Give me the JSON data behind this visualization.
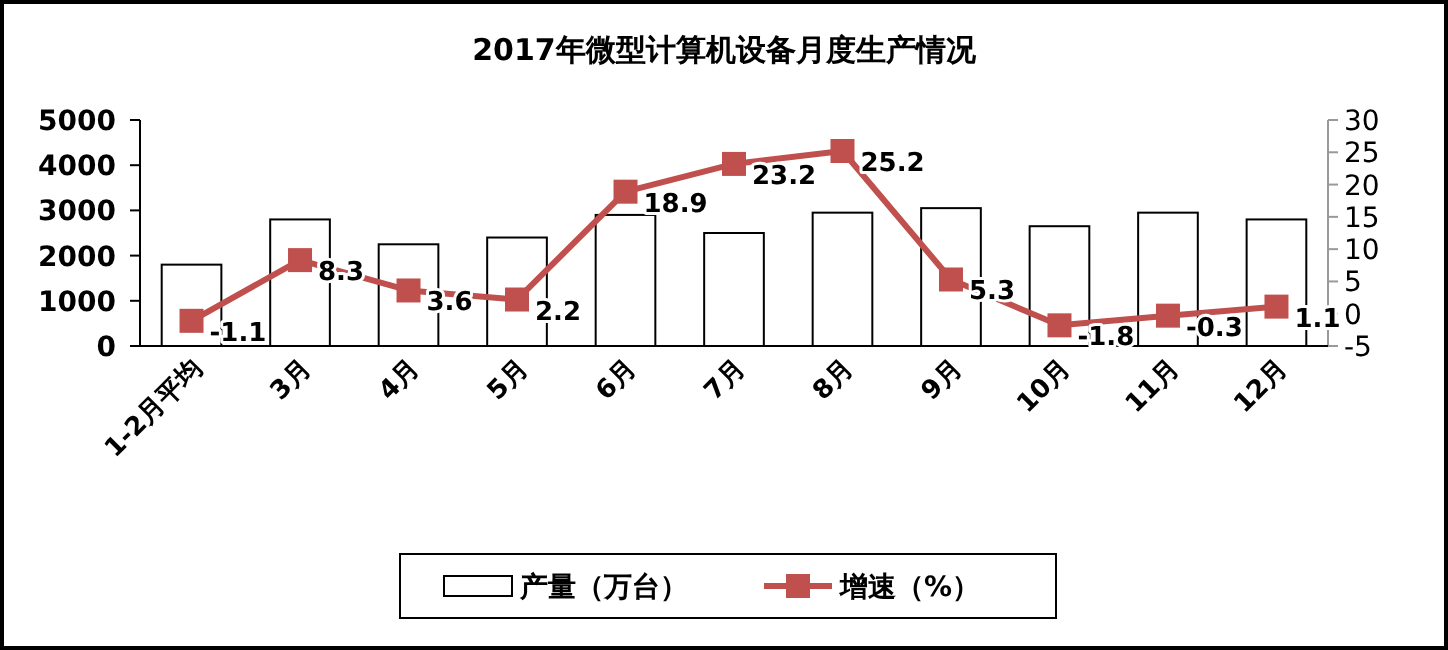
{
  "chart_data": {
    "type": "bar",
    "title": "2017年微型计算机设备月度生产情况",
    "categories": [
      "1-2月平均",
      "3月",
      "4月",
      "5月",
      "6月",
      "7月",
      "8月",
      "9月",
      "10月",
      "11月",
      "12月"
    ],
    "series": [
      {
        "name": "产量（万台）",
        "color": "#ffffff",
        "values": [
          1800,
          2800,
          2250,
          2400,
          2900,
          2500,
          2950,
          3050,
          2650,
          2950,
          2800
        ]
      },
      {
        "name": "增速（%）",
        "type": "line",
        "axis": "y2",
        "color": "#c0504d",
        "marker": "square",
        "data_labels": true,
        "values": [
          -1.1,
          8.3,
          3.6,
          2.2,
          18.9,
          23.2,
          25.2,
          5.3,
          -1.8,
          -0.3,
          1.1
        ]
      }
    ],
    "ylim": [
      0,
      5000
    ],
    "yticks": [
      0,
      1000,
      2000,
      3000,
      4000,
      5000
    ],
    "y2lim": [
      -5,
      30
    ],
    "y2ticks": [
      -5,
      0,
      5,
      10,
      15,
      20,
      25,
      30
    ],
    "legend": "bottom",
    "grid": false
  }
}
